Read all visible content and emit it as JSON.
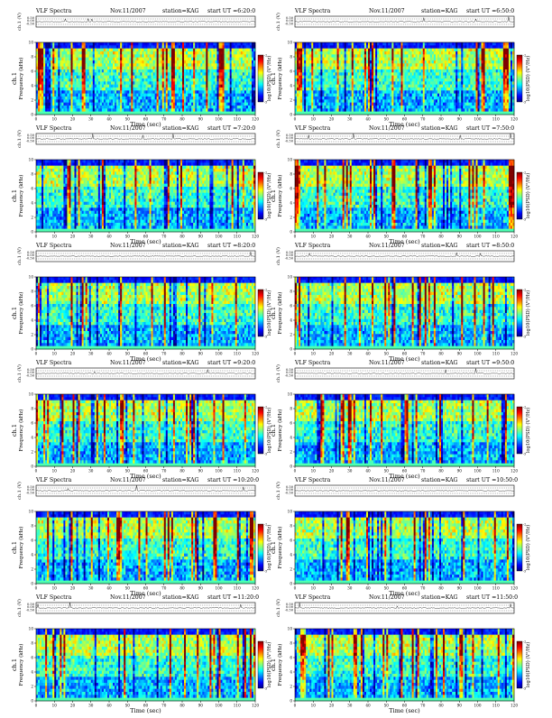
{
  "header_common": {
    "title": "VLF Spectra",
    "station": "station=KAG",
    "ut_prefix": "start UT"
  },
  "panels": [
    {
      "date": "Nov.11/2007",
      "start_ut": "=6:20:0"
    },
    {
      "date": "Nov.11/2007",
      "start_ut": "=6:50:0"
    },
    {
      "date": "Nov.11/2007",
      "start_ut": "=7:20:0"
    },
    {
      "date": "Nov.11/2007",
      "start_ut": "=7:50:0"
    },
    {
      "date": "Nov.11/2007",
      "start_ut": "=8:20:0"
    },
    {
      "date": "Nov.11/2007",
      "start_ut": "=8:50:0"
    },
    {
      "date": "Nov.11/2007",
      "start_ut": "=9:20:0"
    },
    {
      "date": "Nov.11/2007",
      "start_ut": "=9:50:0"
    },
    {
      "date": "Nov.11/2007",
      "start_ut": "=10:20:0"
    },
    {
      "date": "Nov.11/2007",
      "start_ut": "=10:50:0"
    },
    {
      "date": "Nov.11/2007",
      "start_ut": "=11:20:0"
    },
    {
      "date": "Nov.11/2007",
      "start_ut": "=11:50:0"
    }
  ],
  "labels": {
    "ch_label": "ch.1 (V)",
    "ylabel": "ch.1\nFrequency (kHz)",
    "ylabel_ch": "ch.1",
    "ylabel_freq": "Frequency (kHz)",
    "xlabel": "Time (sec)",
    "colorbar_label": "log10(PSD) (V²/Hz)"
  },
  "chart_data": {
    "type": "heatmap",
    "x_ticks": [
      0,
      10,
      20,
      30,
      40,
      50,
      60,
      70,
      80,
      90,
      100,
      110,
      120
    ],
    "xlim": [
      0,
      120
    ],
    "y_ticks": [
      0,
      2,
      4,
      6,
      8,
      10
    ],
    "ylim": [
      0,
      10
    ],
    "ch_ticks": [
      "0.50",
      "0.00",
      "-0.50"
    ],
    "colorbar_range": [
      -5,
      -2
    ],
    "colormap": [
      "#00007f",
      "#0000ff",
      "#007fff",
      "#00ffff",
      "#7fff7f",
      "#ffff00",
      "#ff7f00",
      "#ff0000",
      "#7f0000"
    ]
  },
  "colors": {
    "axis": "#000000",
    "background": "#ffffff"
  }
}
